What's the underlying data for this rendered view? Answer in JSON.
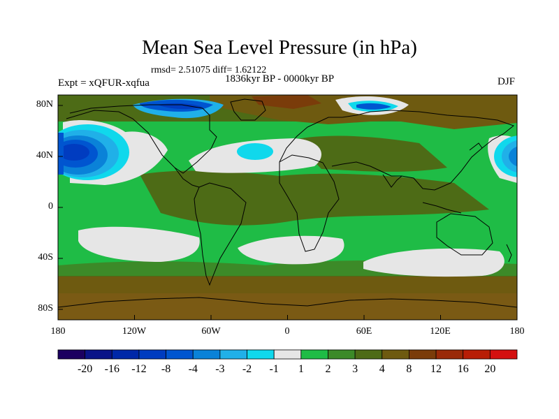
{
  "title": "Mean Sea Level Pressure (in hPa)",
  "stats_line": "rmsd= 2.51075 diff= 1.62122",
  "period_line": "1836kyr BP - 0000kyr BP",
  "experiment_line": "Expt = xQFUR-xqfua",
  "season": "DJF",
  "chart_data": {
    "type": "heatmap",
    "variable": "Mean Sea Level Pressure difference",
    "units": "hPa",
    "x_axis": {
      "range": [
        -180,
        180
      ],
      "ticks": [
        "180",
        "120W",
        "60W",
        "0",
        "60E",
        "120E",
        "180"
      ]
    },
    "y_axis": {
      "range": [
        -90,
        90
      ],
      "ticks": [
        "80N",
        "40N",
        "0",
        "40S",
        "80S"
      ]
    },
    "colorbar": {
      "labels": [
        "-20",
        "-16",
        "-12",
        "-8",
        "-4",
        "-3",
        "-2",
        "-1",
        "1",
        "2",
        "3",
        "4",
        "8",
        "12",
        "16",
        "20"
      ],
      "colors": [
        "#1b0060",
        "#0a1488",
        "#0028a8",
        "#003cc0",
        "#0055d0",
        "#0a82d8",
        "#20b0e8",
        "#10d8ec",
        "#e6e6e6",
        "#1fbc46",
        "#3c8a28",
        "#4d6b16",
        "#6e5a10",
        "#7a3c0a",
        "#9a2a08",
        "#b81e06",
        "#d41010"
      ]
    },
    "features": [
      {
        "region": "North Pacific (Aleutian Low)",
        "value_range": [
          -12,
          -4
        ]
      },
      {
        "region": "North Atlantic near 40N 30W",
        "value_range": [
          -3,
          -2
        ]
      },
      {
        "region": "Greenland / Arctic Canada",
        "value_range": [
          -12,
          -3
        ]
      },
      {
        "region": "Northern Eurasia and Arctic Ocean",
        "value_range": [
          4,
          12
        ]
      },
      {
        "region": "Southern subtropical oceans",
        "value_range": [
          -1,
          1
        ]
      },
      {
        "region": "Southern Ocean and Antarctica",
        "value_range": [
          3,
          8
        ]
      },
      {
        "region": "Tropics",
        "value_range": [
          1,
          4
        ]
      }
    ]
  }
}
